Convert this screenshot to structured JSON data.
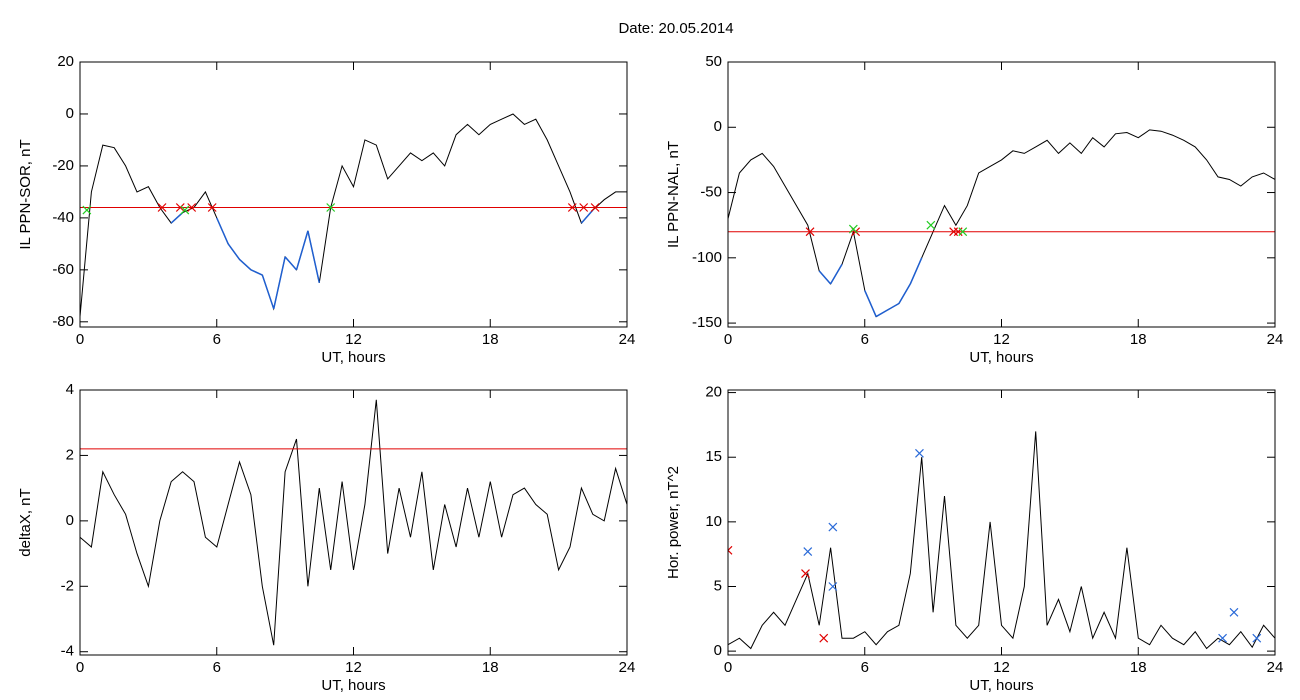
{
  "title": "Date:  20.05.2014",
  "chart_data": [
    {
      "type": "line",
      "xlabel": "UT, hours",
      "ylabel": "IL PPN-SOR, nT",
      "xlim": [
        0,
        24
      ],
      "xticks": [
        0,
        6,
        12,
        18,
        24
      ],
      "ylim": [
        -82,
        20
      ],
      "yticks": [
        -80,
        -60,
        -40,
        -20,
        0,
        20
      ],
      "x": [
        0,
        0.5,
        1,
        1.5,
        2,
        2.5,
        3,
        3.5,
        4,
        4.5,
        5,
        5.5,
        6,
        6.5,
        7,
        7.5,
        8,
        8.5,
        9,
        9.5,
        10,
        10.5,
        11,
        11.5,
        12,
        12.5,
        13,
        13.5,
        14,
        14.5,
        15,
        15.5,
        16,
        16.5,
        17,
        17.5,
        18,
        18.5,
        19,
        19.5,
        20,
        20.5,
        21,
        21.5,
        22,
        22.5,
        23,
        23.5,
        24
      ],
      "series": [
        {
          "color": "#000000",
          "below_color": "#1f5fd0",
          "values": [
            -78,
            -30,
            -12,
            -13,
            -20,
            -30,
            -28,
            -36,
            -42,
            -38,
            -36,
            -30,
            -40,
            -50,
            -56,
            -60,
            -62,
            -75,
            -55,
            -60,
            -45,
            -65,
            -36,
            -20,
            -28,
            -10,
            -12,
            -25,
            -20,
            -15,
            -18,
            -15,
            -20,
            -8,
            -4,
            -8,
            -4,
            -2,
            0,
            -4,
            -2,
            -10,
            -20,
            -30,
            -42,
            -37,
            -33,
            -30,
            -30
          ]
        }
      ],
      "threshold": {
        "value": -36,
        "color": "#e00000"
      },
      "markers": [
        {
          "color": "#e00000",
          "x": [
            3.6,
            4.4,
            4.9,
            5.8,
            21.6,
            22.1,
            22.6
          ],
          "values": [
            -36,
            -36,
            -36,
            -36,
            -36,
            -36,
            -36
          ]
        },
        {
          "color": "#22cc22",
          "x": [
            0.3,
            4.6,
            11
          ],
          "values": [
            -37,
            -37,
            -36
          ]
        }
      ]
    },
    {
      "type": "line",
      "xlabel": "UT, hours",
      "ylabel": "IL PPN-NAL, nT",
      "xlim": [
        0,
        24
      ],
      "xticks": [
        0,
        6,
        12,
        18,
        24
      ],
      "ylim": [
        -153,
        50
      ],
      "yticks": [
        -150,
        -100,
        -50,
        0,
        50
      ],
      "x": [
        0,
        0.5,
        1,
        1.5,
        2,
        2.5,
        3,
        3.5,
        4,
        4.5,
        5,
        5.5,
        6,
        6.5,
        7,
        7.5,
        8,
        8.5,
        9,
        9.5,
        10,
        10.5,
        11,
        11.5,
        12,
        12.5,
        13,
        13.5,
        14,
        14.5,
        15,
        15.5,
        16,
        16.5,
        17,
        17.5,
        18,
        18.5,
        19,
        19.5,
        20,
        20.5,
        21,
        21.5,
        22,
        22.5,
        23,
        23.5,
        24
      ],
      "series": [
        {
          "color": "#000000",
          "below_color": "#1f5fd0",
          "values": [
            -70,
            -35,
            -25,
            -20,
            -30,
            -45,
            -60,
            -75,
            -110,
            -120,
            -105,
            -80,
            -125,
            -145,
            -140,
            -135,
            -120,
            -100,
            -80,
            -60,
            -75,
            -60,
            -35,
            -30,
            -25,
            -18,
            -20,
            -15,
            -10,
            -20,
            -12,
            -20,
            -8,
            -15,
            -5,
            -4,
            -8,
            -2,
            -3,
            -6,
            -10,
            -15,
            -25,
            -38,
            -40,
            -45,
            -38,
            -35,
            -40
          ]
        }
      ],
      "threshold": {
        "value": -80,
        "color": "#e00000"
      },
      "markers": [
        {
          "color": "#e00000",
          "x": [
            3.6,
            5.6,
            9.9,
            10.1
          ],
          "values": [
            -80,
            -80,
            -80,
            -80
          ]
        },
        {
          "color": "#22cc22",
          "x": [
            5.5,
            8.9,
            10.3
          ],
          "values": [
            -78,
            -75,
            -80
          ]
        }
      ]
    },
    {
      "type": "line",
      "xlabel": "UT, hours",
      "ylabel": "deltaX, nT",
      "xlim": [
        0,
        24
      ],
      "xticks": [
        0,
        6,
        12,
        18,
        24
      ],
      "ylim": [
        -4.1,
        4
      ],
      "yticks": [
        -4,
        -2,
        0,
        2,
        4
      ],
      "x": [
        0,
        0.5,
        1,
        1.5,
        2,
        2.5,
        3,
        3.5,
        4,
        4.5,
        5,
        5.5,
        6,
        6.5,
        7,
        7.5,
        8,
        8.5,
        9,
        9.5,
        10,
        10.5,
        11,
        11.5,
        12,
        12.5,
        13,
        13.5,
        14,
        14.5,
        15,
        15.5,
        16,
        16.5,
        17,
        17.5,
        18,
        18.5,
        19,
        19.5,
        20,
        20.5,
        21,
        21.5,
        22,
        22.5,
        23,
        23.5,
        24
      ],
      "series": [
        {
          "color": "#000000",
          "values": [
            -0.5,
            -0.8,
            1.5,
            0.8,
            0.2,
            -1,
            -2,
            0,
            1.2,
            1.5,
            1.2,
            -0.5,
            -0.8,
            0.5,
            1.8,
            0.8,
            -2,
            -3.8,
            1.5,
            2.5,
            -2,
            1,
            -1.5,
            1.2,
            -1.5,
            0.5,
            3.7,
            -1,
            1,
            -0.5,
            1.5,
            -1.5,
            0.5,
            -0.8,
            1,
            -0.5,
            1.2,
            -0.5,
            0.8,
            1,
            0.5,
            0.2,
            -1.5,
            -0.8,
            1,
            0.2,
            0,
            1.6,
            0.5
          ]
        }
      ],
      "threshold": {
        "value": 2.2,
        "color": "#e00000"
      }
    },
    {
      "type": "line",
      "xlabel": "UT, hours",
      "ylabel": "Hor. power, nT^2",
      "xlim": [
        0,
        24
      ],
      "xticks": [
        0,
        6,
        12,
        18,
        24
      ],
      "ylim": [
        -0.3,
        20.2
      ],
      "yticks": [
        0,
        5,
        10,
        15,
        20
      ],
      "x": [
        0,
        0.5,
        1,
        1.5,
        2,
        2.5,
        3,
        3.5,
        4,
        4.5,
        5,
        5.5,
        6,
        6.5,
        7,
        7.5,
        8,
        8.5,
        9,
        9.5,
        10,
        10.5,
        11,
        11.5,
        12,
        12.5,
        13,
        13.5,
        14,
        14.5,
        15,
        15.5,
        16,
        16.5,
        17,
        17.5,
        18,
        18.5,
        19,
        19.5,
        20,
        20.5,
        21,
        21.5,
        22,
        22.5,
        23,
        23.5,
        24
      ],
      "series": [
        {
          "color": "#000000",
          "values": [
            0.5,
            1,
            0.2,
            2,
            3,
            2,
            4,
            6,
            2,
            8,
            1,
            1,
            1.5,
            0.5,
            1.5,
            2,
            6,
            15,
            3,
            12,
            2,
            1,
            2,
            10,
            2,
            1,
            5,
            17,
            2,
            4,
            1.5,
            5,
            1,
            3,
            1,
            8,
            1,
            0.5,
            2,
            1,
            0.5,
            1.5,
            0.2,
            1,
            0.5,
            1.5,
            0.3,
            2,
            1
          ]
        }
      ],
      "markers": [
        {
          "color": "#2a6ad8",
          "x": [
            3.5,
            4.6,
            4.6,
            8.4,
            21.7,
            22.2,
            23.2
          ],
          "values": [
            7.7,
            9.6,
            5,
            15.3,
            1,
            3,
            1
          ]
        },
        {
          "color": "#e00000",
          "x": [
            0,
            3.4,
            4.2
          ],
          "values": [
            7.8,
            6,
            1
          ]
        }
      ]
    }
  ]
}
